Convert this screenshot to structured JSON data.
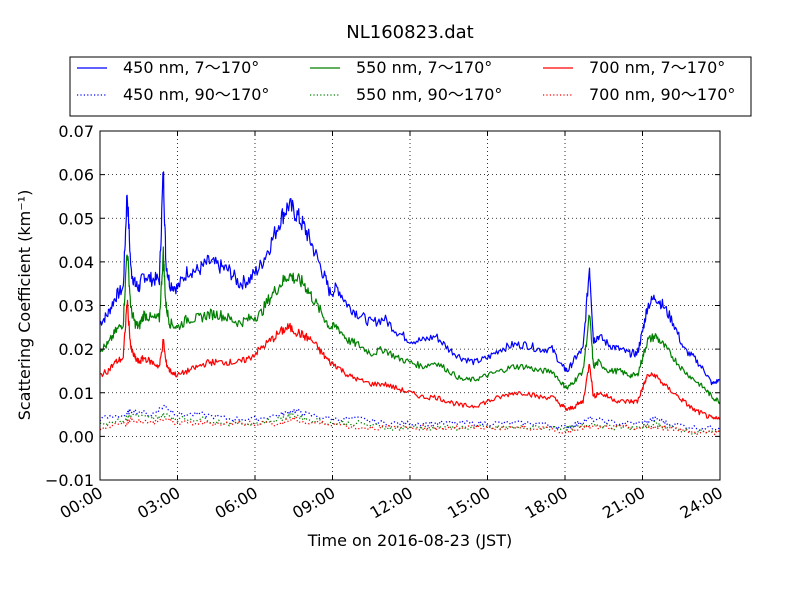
{
  "chart_data": {
    "type": "line",
    "title": "NL160823.dat",
    "xlabel": "Time on 2016-08-23 (JST)",
    "ylabel": "Scattering Coefficient (km⁻¹)",
    "xlim_hours": [
      0,
      24
    ],
    "ylim": [
      -0.01,
      0.07
    ],
    "x_ticks": [
      {
        "hour": 0,
        "label": "00:00"
      },
      {
        "hour": 3,
        "label": "03:00"
      },
      {
        "hour": 6,
        "label": "06:00"
      },
      {
        "hour": 9,
        "label": "09:00"
      },
      {
        "hour": 12,
        "label": "12:00"
      },
      {
        "hour": 15,
        "label": "15:00"
      },
      {
        "hour": 18,
        "label": "18:00"
      },
      {
        "hour": 21,
        "label": "21:00"
      },
      {
        "hour": 24,
        "label": "24:00"
      }
    ],
    "y_ticks": [
      {
        "value": -0.01,
        "label": "−0.01"
      },
      {
        "value": 0.0,
        "label": "0.00"
      },
      {
        "value": 0.01,
        "label": "0.01"
      },
      {
        "value": 0.02,
        "label": "0.02"
      },
      {
        "value": 0.03,
        "label": "0.03"
      },
      {
        "value": 0.04,
        "label": "0.04"
      },
      {
        "value": 0.05,
        "label": "0.05"
      },
      {
        "value": 0.06,
        "label": "0.06"
      },
      {
        "value": 0.07,
        "label": "0.07"
      }
    ],
    "grid": true,
    "legend_placement": "top, above plot, 3 columns",
    "series": [
      {
        "name": "450 nm, 7～170°",
        "color": "#0000ff",
        "style": "solid",
        "x": [
          0,
          0.3,
          0.6,
          0.9,
          1.05,
          1.2,
          1.35,
          1.5,
          1.7,
          2.0,
          2.3,
          2.45,
          2.55,
          2.7,
          3.0,
          3.4,
          3.8,
          4.2,
          4.6,
          5.0,
          5.4,
          5.8,
          6.2,
          6.6,
          7.0,
          7.3,
          7.6,
          7.9,
          8.2,
          8.6,
          8.9,
          9.2,
          9.6,
          10.0,
          10.5,
          11.0,
          11.5,
          12.0,
          12.5,
          13.0,
          13.5,
          14.0,
          14.5,
          15.0,
          15.5,
          16.0,
          16.5,
          17.0,
          17.5,
          17.9,
          18.1,
          18.4,
          18.7,
          18.95,
          19.1,
          19.3,
          19.7,
          20.1,
          20.5,
          20.8,
          21.0,
          21.2,
          21.5,
          21.8,
          22.2,
          22.6,
          23.0,
          23.4,
          23.7,
          24.0
        ],
        "y": [
          0.026,
          0.028,
          0.032,
          0.034,
          0.056,
          0.038,
          0.035,
          0.034,
          0.037,
          0.036,
          0.036,
          0.061,
          0.04,
          0.035,
          0.034,
          0.038,
          0.038,
          0.04,
          0.039,
          0.038,
          0.035,
          0.036,
          0.039,
          0.044,
          0.05,
          0.053,
          0.051,
          0.048,
          0.044,
          0.038,
          0.033,
          0.034,
          0.03,
          0.028,
          0.026,
          0.027,
          0.024,
          0.022,
          0.022,
          0.023,
          0.02,
          0.018,
          0.017,
          0.018,
          0.02,
          0.021,
          0.021,
          0.02,
          0.02,
          0.016,
          0.015,
          0.018,
          0.02,
          0.039,
          0.022,
          0.023,
          0.021,
          0.02,
          0.019,
          0.019,
          0.024,
          0.03,
          0.032,
          0.03,
          0.026,
          0.02,
          0.018,
          0.015,
          0.012,
          0.013
        ]
      },
      {
        "name": "450 nm, 90～170°",
        "color": "#0000ff",
        "style": "dotted",
        "x": [
          0,
          1.0,
          1.2,
          2.0,
          2.5,
          3.0,
          4.0,
          5.0,
          6.0,
          7.0,
          7.5,
          8.0,
          9.0,
          10.0,
          11.0,
          12.0,
          13.0,
          14.0,
          15.0,
          16.0,
          17.0,
          18.0,
          18.5,
          19.0,
          20.0,
          21.0,
          21.5,
          22.0,
          23.0,
          24.0
        ],
        "y": [
          0.004,
          0.005,
          0.006,
          0.005,
          0.007,
          0.005,
          0.005,
          0.004,
          0.004,
          0.005,
          0.006,
          0.005,
          0.004,
          0.004,
          0.003,
          0.003,
          0.003,
          0.003,
          0.003,
          0.003,
          0.003,
          0.002,
          0.003,
          0.004,
          0.003,
          0.003,
          0.004,
          0.003,
          0.002,
          0.002
        ]
      },
      {
        "name": "550 nm, 7～170°",
        "color": "#008000",
        "style": "solid",
        "x": [
          0,
          0.3,
          0.6,
          0.9,
          1.05,
          1.2,
          1.35,
          1.5,
          1.7,
          2.0,
          2.3,
          2.45,
          2.55,
          2.7,
          3.0,
          3.4,
          3.8,
          4.2,
          4.6,
          5.0,
          5.4,
          5.8,
          6.2,
          6.6,
          7.0,
          7.3,
          7.6,
          7.9,
          8.2,
          8.6,
          8.9,
          9.2,
          9.6,
          10.0,
          10.5,
          11.0,
          11.5,
          12.0,
          12.5,
          13.0,
          13.5,
          14.0,
          14.5,
          15.0,
          15.5,
          16.0,
          16.5,
          17.0,
          17.5,
          17.9,
          18.1,
          18.4,
          18.7,
          18.95,
          19.1,
          19.3,
          19.7,
          20.1,
          20.5,
          20.8,
          21.0,
          21.2,
          21.5,
          21.8,
          22.2,
          22.6,
          23.0,
          23.4,
          23.7,
          24.0
        ],
        "y": [
          0.02,
          0.021,
          0.024,
          0.026,
          0.043,
          0.029,
          0.026,
          0.025,
          0.028,
          0.027,
          0.027,
          0.042,
          0.03,
          0.026,
          0.025,
          0.027,
          0.027,
          0.028,
          0.028,
          0.027,
          0.026,
          0.027,
          0.028,
          0.032,
          0.035,
          0.037,
          0.036,
          0.035,
          0.032,
          0.028,
          0.025,
          0.025,
          0.022,
          0.021,
          0.019,
          0.02,
          0.018,
          0.017,
          0.016,
          0.017,
          0.015,
          0.013,
          0.013,
          0.014,
          0.015,
          0.016,
          0.016,
          0.015,
          0.015,
          0.012,
          0.011,
          0.013,
          0.015,
          0.028,
          0.016,
          0.017,
          0.015,
          0.015,
          0.014,
          0.014,
          0.018,
          0.022,
          0.023,
          0.021,
          0.018,
          0.015,
          0.013,
          0.011,
          0.009,
          0.008
        ]
      },
      {
        "name": "550 nm, 90～170°",
        "color": "#008000",
        "style": "dotted",
        "x": [
          0,
          1.0,
          1.2,
          2.0,
          2.5,
          3.0,
          4.0,
          5.0,
          6.0,
          7.0,
          7.5,
          8.0,
          9.0,
          10.0,
          11.0,
          12.0,
          13.0,
          14.0,
          15.0,
          16.0,
          17.0,
          18.0,
          18.5,
          19.0,
          20.0,
          21.0,
          21.5,
          22.0,
          23.0,
          24.0
        ],
        "y": [
          0.003,
          0.004,
          0.005,
          0.004,
          0.005,
          0.004,
          0.004,
          0.003,
          0.003,
          0.004,
          0.005,
          0.004,
          0.003,
          0.003,
          0.002,
          0.002,
          0.002,
          0.002,
          0.002,
          0.002,
          0.002,
          0.002,
          0.002,
          0.003,
          0.002,
          0.002,
          0.003,
          0.002,
          0.001,
          0.001
        ]
      },
      {
        "name": "700 nm, 7～170°",
        "color": "#ff0000",
        "style": "solid",
        "x": [
          0,
          0.3,
          0.6,
          0.9,
          1.05,
          1.2,
          1.35,
          1.5,
          1.7,
          2.0,
          2.3,
          2.45,
          2.55,
          2.7,
          3.0,
          3.4,
          3.8,
          4.2,
          4.6,
          5.0,
          5.4,
          5.8,
          6.2,
          6.6,
          7.0,
          7.3,
          7.6,
          7.9,
          8.2,
          8.6,
          8.9,
          9.2,
          9.6,
          10.0,
          10.5,
          11.0,
          11.5,
          12.0,
          12.5,
          13.0,
          13.5,
          14.0,
          14.5,
          15.0,
          15.5,
          16.0,
          16.5,
          17.0,
          17.5,
          17.9,
          18.1,
          18.4,
          18.7,
          18.95,
          19.1,
          19.3,
          19.7,
          20.1,
          20.5,
          20.8,
          21.0,
          21.2,
          21.5,
          21.8,
          22.2,
          22.6,
          23.0,
          23.4,
          23.7,
          24.0
        ],
        "y": [
          0.014,
          0.015,
          0.017,
          0.018,
          0.031,
          0.02,
          0.018,
          0.017,
          0.018,
          0.017,
          0.016,
          0.022,
          0.017,
          0.015,
          0.014,
          0.015,
          0.016,
          0.017,
          0.017,
          0.017,
          0.017,
          0.018,
          0.02,
          0.022,
          0.024,
          0.025,
          0.024,
          0.023,
          0.022,
          0.019,
          0.017,
          0.016,
          0.014,
          0.013,
          0.012,
          0.012,
          0.011,
          0.01,
          0.009,
          0.009,
          0.008,
          0.007,
          0.007,
          0.008,
          0.009,
          0.01,
          0.01,
          0.009,
          0.009,
          0.007,
          0.006,
          0.007,
          0.008,
          0.017,
          0.009,
          0.01,
          0.009,
          0.008,
          0.008,
          0.008,
          0.011,
          0.014,
          0.014,
          0.012,
          0.01,
          0.008,
          0.006,
          0.005,
          0.004,
          0.004
        ]
      },
      {
        "name": "700 nm, 90～170°",
        "color": "#ff0000",
        "style": "dotted",
        "x": [
          0,
          1.0,
          1.2,
          2.0,
          2.5,
          3.0,
          4.0,
          5.0,
          6.0,
          7.0,
          7.5,
          8.0,
          9.0,
          10.0,
          11.0,
          12.0,
          13.0,
          14.0,
          15.0,
          16.0,
          17.0,
          18.0,
          18.5,
          19.0,
          20.0,
          21.0,
          21.5,
          22.0,
          23.0,
          24.0
        ],
        "y": [
          0.002,
          0.003,
          0.004,
          0.003,
          0.004,
          0.003,
          0.003,
          0.003,
          0.003,
          0.003,
          0.004,
          0.003,
          0.003,
          0.002,
          0.002,
          0.002,
          0.002,
          0.002,
          0.002,
          0.002,
          0.002,
          0.001,
          0.002,
          0.002,
          0.002,
          0.002,
          0.002,
          0.002,
          0.001,
          0.001
        ]
      }
    ]
  }
}
